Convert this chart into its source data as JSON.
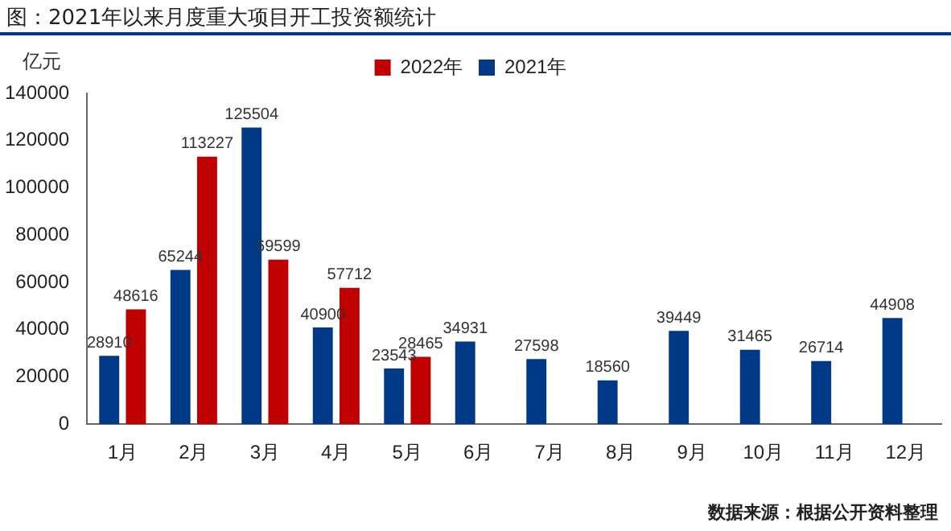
{
  "chart_data": {
    "type": "bar",
    "title": "图：2021年以来月度重大项目开工投资额统计",
    "ylabel": "亿元",
    "categories": [
      "1月",
      "2月",
      "3月",
      "4月",
      "5月",
      "6月",
      "7月",
      "8月",
      "9月",
      "10月",
      "11月",
      "12月"
    ],
    "series": [
      {
        "name": "2021年",
        "color": "#003a86",
        "values": [
          28910,
          65244,
          125504,
          40900,
          23543,
          34931,
          27598,
          18560,
          39449,
          31465,
          26714,
          44908
        ]
      },
      {
        "name": "2022年",
        "color": "#c00000",
        "values": [
          48616,
          113227,
          69599,
          57712,
          28465,
          null,
          null,
          null,
          null,
          null,
          null,
          null
        ]
      }
    ],
    "ylim": [
      0,
      140000
    ],
    "yticks": [
      0,
      20000,
      40000,
      60000,
      80000,
      100000,
      120000,
      140000
    ],
    "grid": false,
    "legend": "top",
    "data_labels": true,
    "annotations": [
      "数据来源：根据公开资料整理"
    ]
  }
}
